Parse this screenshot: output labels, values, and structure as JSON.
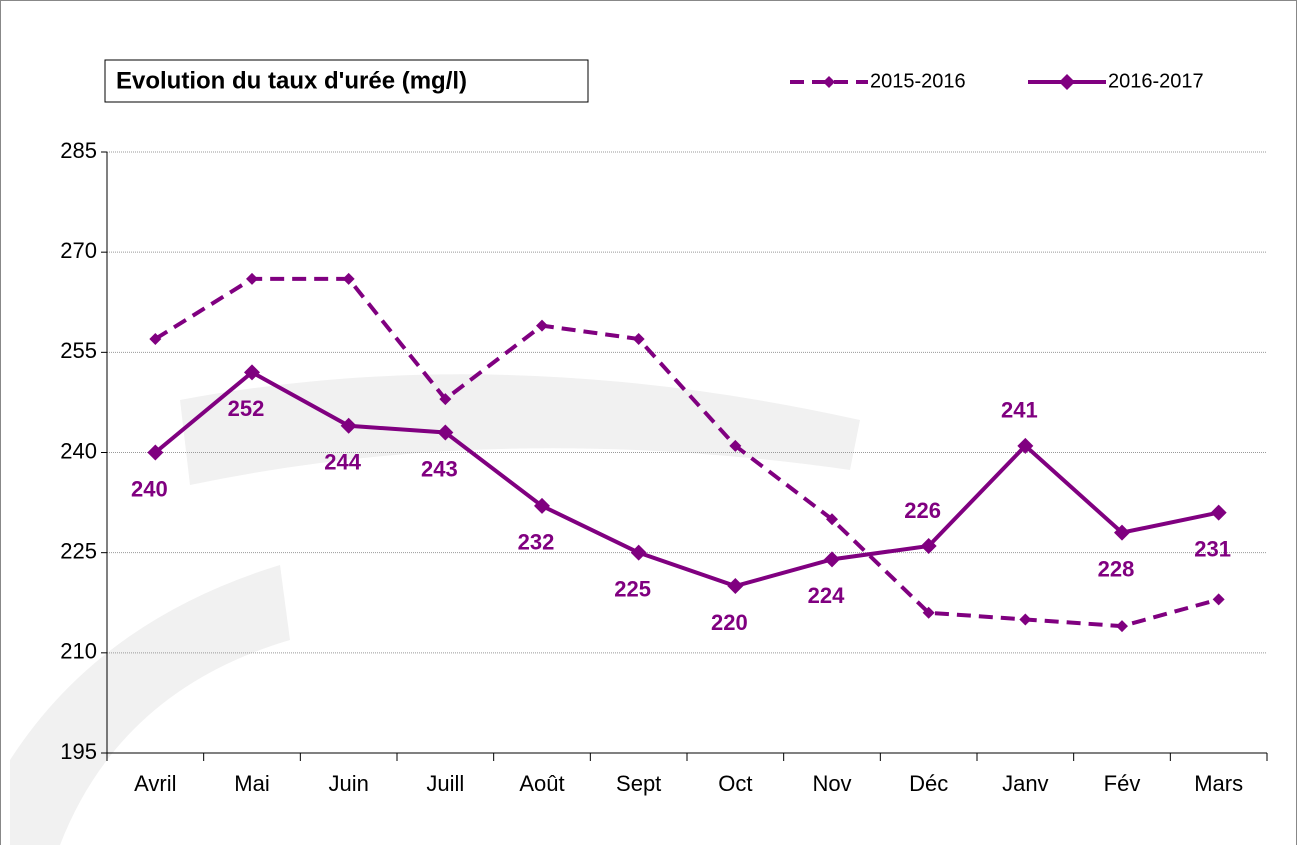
{
  "chart_data": {
    "type": "line",
    "title": "Evolution du taux d'urée (mg/l)",
    "categories": [
      "Avril",
      "Mai",
      "Juin",
      "Juill",
      "Août",
      "Sept",
      "Oct",
      "Nov",
      "Déc",
      "Janv",
      "Fév",
      "Mars"
    ],
    "series": [
      {
        "name": "2015-2016",
        "color": "#800080",
        "dashed": true,
        "values": [
          257,
          266,
          266,
          248,
          259,
          257,
          241,
          230,
          216,
          215,
          214,
          218
        ]
      },
      {
        "name": "2016-2017",
        "color": "#800080",
        "dashed": false,
        "values": [
          240,
          252,
          244,
          243,
          232,
          225,
          220,
          224,
          226,
          241,
          228,
          231
        ],
        "data_labels": true
      }
    ],
    "ylim": [
      195,
      285
    ],
    "yticks": [
      195,
      210,
      225,
      240,
      255,
      270,
      285
    ],
    "grid": true,
    "legend": "top-right"
  }
}
